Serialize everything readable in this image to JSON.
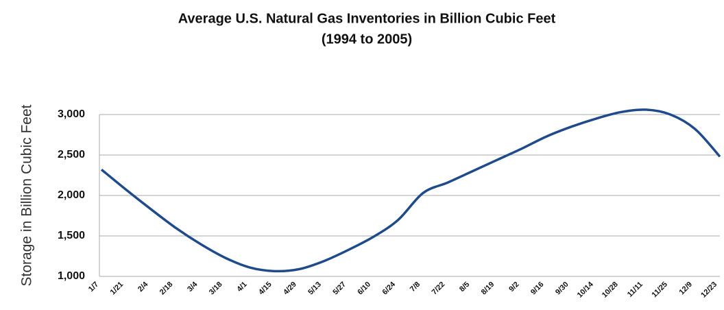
{
  "chart_data": {
    "type": "line",
    "title": "Average U.S. Natural Gas Inventories in Billion Cubic Feet",
    "subtitle": "(1994 to 2005)",
    "y_label": "Storage in Billion Cubic Feet",
    "categories": [
      "1/7",
      "1/21",
      "2/4",
      "2/18",
      "3/4",
      "3/18",
      "4/1",
      "4/15",
      "4/29",
      "5/13",
      "5/27",
      "6/10",
      "6/24",
      "7/8",
      "7/22",
      "8/5",
      "8/19",
      "9/2",
      "9/16",
      "9/30",
      "10/14",
      "10/28",
      "11/11",
      "11/25",
      "12/9",
      "12/23"
    ],
    "values": [
      2320,
      2070,
      1830,
      1600,
      1400,
      1230,
      1110,
      1065,
      1090,
      1190,
      1330,
      1490,
      1700,
      2030,
      2160,
      2300,
      2440,
      2580,
      2730,
      2850,
      2950,
      3030,
      3060,
      3000,
      2820,
      2480
    ],
    "color": "#1f4a8c",
    "ylim": [
      1000,
      3000
    ],
    "yticks": [
      {
        "value": 1000,
        "label": "1,000"
      },
      {
        "value": 1500,
        "label": "1,500"
      },
      {
        "value": 2000,
        "label": "2,000"
      },
      {
        "value": 2500,
        "label": "2,500"
      },
      {
        "value": 3000,
        "label": "3,000"
      }
    ],
    "grid": true
  }
}
